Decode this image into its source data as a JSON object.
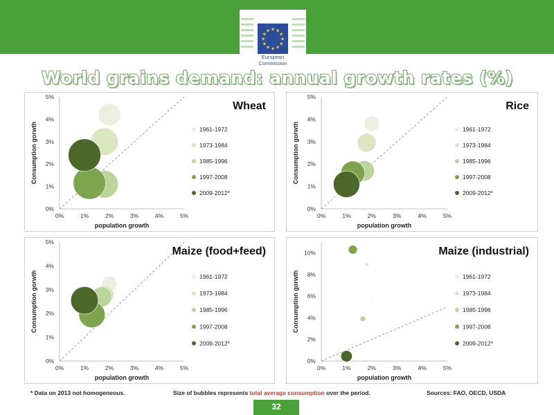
{
  "header": {
    "logo_line1": "European",
    "logo_line2": "Commission",
    "title": "World grains demand: annual growth rates (%)"
  },
  "colors": {
    "brand_green": "#4aa13a",
    "eu_blue": "#2b4b9b",
    "eu_star": "#f7d117",
    "title_stroke": "#3d8f2d",
    "series": [
      "#ecefdf",
      "#d9e6c1",
      "#bcd59b",
      "#7ea44d",
      "#4b6729"
    ]
  },
  "legend_labels": [
    "1961-1972",
    "1973-1984",
    "1985-1996",
    "1997-2008",
    "2009-2012*"
  ],
  "chart_data": [
    {
      "type": "scatter",
      "title": "Wheat",
      "xlabel": "population growth",
      "ylabel": "Consumption gorwth",
      "xlim": [
        0,
        5
      ],
      "ylim": [
        0,
        5
      ],
      "xticks": [
        "0%",
        "1%",
        "2%",
        "3%",
        "4%",
        "5%"
      ],
      "yticks": [
        "0%",
        "1%",
        "2%",
        "3%",
        "4%",
        "5%"
      ],
      "diagonal": true,
      "series": [
        {
          "name": "1961-1972",
          "x": 2.0,
          "y": 4.2,
          "size": 0.9
        },
        {
          "name": "1973-1984",
          "x": 1.8,
          "y": 3.0,
          "size": 1.1
        },
        {
          "name": "1985-1996",
          "x": 1.8,
          "y": 1.1,
          "size": 1.1
        },
        {
          "name": "1997-2008",
          "x": 1.2,
          "y": 1.15,
          "size": 1.3
        },
        {
          "name": "2009-2012*",
          "x": 1.0,
          "y": 2.4,
          "size": 1.3
        }
      ]
    },
    {
      "type": "scatter",
      "title": "Rice",
      "xlabel": "population growth",
      "ylabel": "Consumption gorwth",
      "xlim": [
        0,
        5
      ],
      "ylim": [
        0,
        5
      ],
      "xticks": [
        "0%",
        "1%",
        "2%",
        "3%",
        "4%",
        "5%"
      ],
      "yticks": [
        "0%",
        "1%",
        "2%",
        "3%",
        "4%",
        "5%"
      ],
      "diagonal": true,
      "series": [
        {
          "name": "1961-1972",
          "x": 2.0,
          "y": 3.8,
          "size": 0.6
        },
        {
          "name": "1973-1984",
          "x": 1.8,
          "y": 2.95,
          "size": 0.75
        },
        {
          "name": "1985-1996",
          "x": 1.7,
          "y": 1.7,
          "size": 0.8
        },
        {
          "name": "1997-2008",
          "x": 1.25,
          "y": 1.6,
          "size": 0.95
        },
        {
          "name": "2009-2012*",
          "x": 1.0,
          "y": 1.1,
          "size": 1.05
        }
      ]
    },
    {
      "type": "scatter",
      "title": "Maize (food+feed)",
      "xlabel": "population growth",
      "ylabel": "Consumption gorwth",
      "xlim": [
        0,
        5
      ],
      "ylim": [
        0,
        5
      ],
      "xticks": [
        "0%",
        "1%",
        "2%",
        "3%",
        "4%",
        "5%"
      ],
      "yticks": [
        "0%",
        "1%",
        "2%",
        "3%",
        "4%",
        "5%"
      ],
      "diagonal": true,
      "series": [
        {
          "name": "1961-1972",
          "x": 2.0,
          "y": 3.25,
          "size": 0.6
        },
        {
          "name": "1973-1984",
          "x": 1.8,
          "y": 2.8,
          "size": 0.75
        },
        {
          "name": "1985-1996",
          "x": 1.7,
          "y": 2.7,
          "size": 0.8
        },
        {
          "name": "1997-2008",
          "x": 1.3,
          "y": 1.95,
          "size": 1.05
        },
        {
          "name": "2009-2012*",
          "x": 1.0,
          "y": 2.55,
          "size": 1.1
        }
      ]
    },
    {
      "type": "scatter",
      "title": "Maize (industrial)",
      "xlabel": "population growth",
      "ylabel": "Consumption gorwth",
      "xlim": [
        0,
        5
      ],
      "ylim": [
        0,
        11
      ],
      "xticks": [
        "0%",
        "1%",
        "2%",
        "3%",
        "4%",
        "5%"
      ],
      "yticks": [
        "0%",
        "2%",
        "4%",
        "6%",
        "8%",
        "10%"
      ],
      "yticks_values": [
        0,
        2,
        4,
        6,
        8,
        10
      ],
      "diagonal": true,
      "series": [
        {
          "name": "1961-1972",
          "x": 2.0,
          "y": 5.7,
          "size": 0.07
        },
        {
          "name": "1973-1984",
          "x": 1.8,
          "y": 8.9,
          "size": 0.15
        },
        {
          "name": "1985-1996",
          "x": 1.65,
          "y": 3.9,
          "size": 0.22
        },
        {
          "name": "1997-2008",
          "x": 1.25,
          "y": 10.3,
          "size": 0.35
        },
        {
          "name": "2009-2012*",
          "x": 1.0,
          "y": 0.45,
          "size": 0.45
        }
      ]
    }
  ],
  "footer": {
    "note": "* Data on 2013 not homogeneous.",
    "size_prefix": "Size of bubbles represents ",
    "size_highlight": "total average consumption",
    "size_suffix": " over the period.",
    "sources": "Sources: FAO, OECD, USDA",
    "page": "32"
  }
}
